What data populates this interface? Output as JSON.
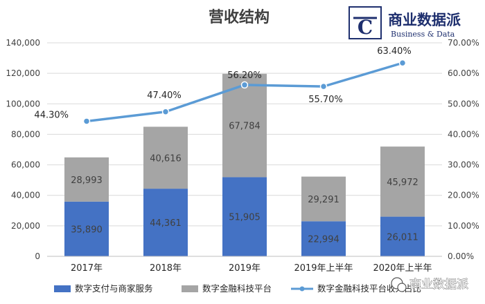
{
  "brand": {
    "name": "商业数据派",
    "tagline": "Business & Data",
    "logo_letter": "C",
    "color": "#1e2f6e"
  },
  "watermark": {
    "text": "商业数据派"
  },
  "chart_data": {
    "type": "bar",
    "stacked": true,
    "title": "营收结构",
    "categories": [
      "2017年",
      "2018年",
      "2019年",
      "2019年上半年",
      "2020年上半年"
    ],
    "series": [
      {
        "name": "数字支付与商家服务",
        "kind": "bar",
        "axis": "left",
        "color": "#4472c4",
        "values": [
          35890,
          44361,
          51905,
          22994,
          26011
        ],
        "labels": [
          "35,890",
          "44,361",
          "51,905",
          "22,994",
          "26,011"
        ]
      },
      {
        "name": "数字金融科技平台",
        "kind": "bar",
        "axis": "left",
        "color": "#a5a5a5",
        "values": [
          28993,
          40616,
          67784,
          29291,
          45972
        ],
        "labels": [
          "28,993",
          "40,616",
          "67,784",
          "29,291",
          "45,972"
        ]
      },
      {
        "name": "数字金融科技平台收入占比",
        "kind": "line",
        "axis": "right",
        "color": "#5b9bd5",
        "values": [
          44.3,
          47.4,
          56.2,
          55.7,
          63.4
        ],
        "labels": [
          "44.30%",
          "47.40%",
          "56.20%",
          "55.70%",
          "63.40%"
        ]
      }
    ],
    "y_left": {
      "min": 0,
      "max": 140000,
      "step": 20000,
      "ticks": [
        "0",
        "20,000",
        "40,000",
        "60,000",
        "80,000",
        "100,000",
        "120,000",
        "140,000"
      ]
    },
    "y_right": {
      "min": 0,
      "max": 70,
      "step": 10,
      "ticks": [
        "0.00%",
        "10.00%",
        "20.00%",
        "30.00%",
        "40.00%",
        "50.00%",
        "60.00%",
        "70.00%"
      ]
    },
    "grid": true,
    "legend_position": "bottom"
  }
}
